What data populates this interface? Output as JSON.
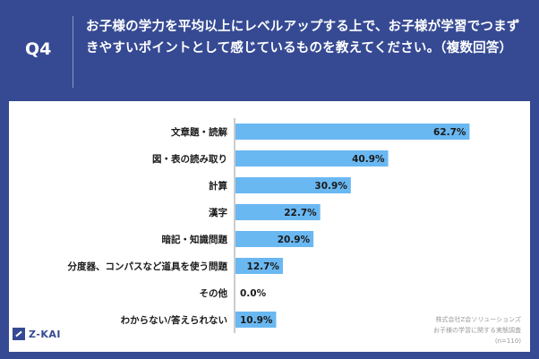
{
  "header": {
    "q_label": "Q4",
    "question": "お子様の学力を平均以上にレベルアップする上で、お子様が学習でつまずきやすいポイントとして感じているものを教えてください。（複数回答）"
  },
  "footer": {
    "logo_text": "Z-KAI",
    "source_line1": "株式会社Z会ソリューションズ",
    "source_line2": "お子様の学習に関する実態調査",
    "source_line3": "(n=110)"
  },
  "colors": {
    "header_bg": "#364a93",
    "bar": "#6ab8f2",
    "axis": "#9a9a9a",
    "text": "#1a1a1a"
  },
  "chart_data": {
    "type": "bar",
    "orientation": "horizontal",
    "categories": [
      "文章題・読解",
      "図・表の読み取り",
      "計算",
      "漢字",
      "暗記・知識問題",
      "分度器、コンパスなど道具を使う問題",
      "その他",
      "わからない/答えられない"
    ],
    "values": [
      62.7,
      40.9,
      30.9,
      22.7,
      20.9,
      12.7,
      0.0,
      10.9
    ],
    "value_labels": [
      "62.7%",
      "40.9%",
      "30.9%",
      "22.7%",
      "20.9%",
      "12.7%",
      "0.0%",
      "10.9%"
    ],
    "xlim": [
      0,
      100
    ],
    "grid": false,
    "legend": "none"
  }
}
